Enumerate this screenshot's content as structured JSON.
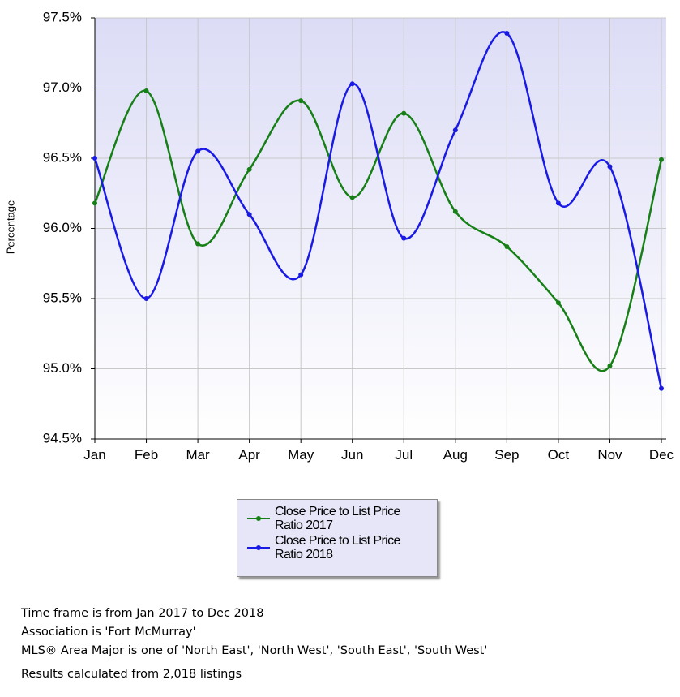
{
  "chart_data": {
    "type": "line",
    "y_label": "Percentage",
    "categories": [
      "Jan",
      "Feb",
      "Mar",
      "Apr",
      "May",
      "Jun",
      "Jul",
      "Aug",
      "Sep",
      "Oct",
      "Nov",
      "Dec"
    ],
    "series": [
      {
        "name": "Close Price to List Price Ratio 2017",
        "color": "#168016",
        "values": [
          96.18,
          96.98,
          95.89,
          96.42,
          96.91,
          96.22,
          96.82,
          96.12,
          95.87,
          95.47,
          95.02,
          96.49
        ]
      },
      {
        "name": "Close Price to List Price Ratio 2018",
        "color": "#1a1ae6",
        "values": [
          96.5,
          95.5,
          96.55,
          96.1,
          95.67,
          97.03,
          95.93,
          96.7,
          97.39,
          96.18,
          96.44,
          94.86
        ]
      }
    ],
    "ylim": [
      94.5,
      97.5
    ],
    "yticks": [
      {
        "value": 94.5,
        "label": "94.5%"
      },
      {
        "value": 95,
        "label": "95.0%"
      },
      {
        "value": 95.5,
        "label": "95.5%"
      },
      {
        "value": 96,
        "label": "96.0%"
      },
      {
        "value": 96.5,
        "label": "96.5%"
      },
      {
        "value": 97,
        "label": "97.0%"
      },
      {
        "value": 97.5,
        "label": "97.5%"
      }
    ],
    "grid": true,
    "smooth": true
  },
  "footer": [
    "Time frame is from Jan 2017 to Dec 2018",
    "Association is 'Fort McMurray'",
    "MLS® Area Major is one of 'North East', 'North West', 'South East', 'South West'",
    "Results calculated from 2,018 listings"
  ]
}
